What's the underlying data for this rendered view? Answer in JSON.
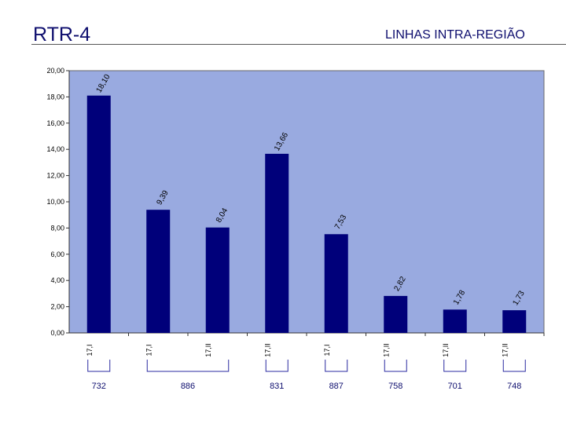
{
  "header": {
    "title": "RTR-4",
    "section": "LINHAS INTRA-REGIÃO"
  },
  "colors": {
    "bar": "#00007a",
    "plot_bg": "#99aae0",
    "ink": "#0e0e6e"
  },
  "chart_data": {
    "type": "bar",
    "title": "",
    "xlabel": "",
    "ylabel": "",
    "ylim": [
      0,
      20
    ],
    "yticks": [
      "0,00",
      "2,00",
      "4,00",
      "6,00",
      "8,00",
      "10,00",
      "12,00",
      "14,00",
      "16,00",
      "18,00",
      "20,00"
    ],
    "categories": [
      "17,I",
      "17,I",
      "17,II",
      "17,II",
      "17,I",
      "17,II",
      "17,II",
      "17,II"
    ],
    "values": [
      18.1,
      9.39,
      8.04,
      13.66,
      7.53,
      2.82,
      1.78,
      1.73
    ],
    "value_labels": [
      "18,10",
      "9,39",
      "8,04",
      "13,66",
      "7,53",
      "2,82",
      "1,78",
      "1,73"
    ],
    "groups": [
      {
        "label": "732",
        "from": 0,
        "to": 0
      },
      {
        "label": "886",
        "from": 1,
        "to": 2
      },
      {
        "label": "831",
        "from": 3,
        "to": 3
      },
      {
        "label": "887",
        "from": 4,
        "to": 4
      },
      {
        "label": "758",
        "from": 5,
        "to": 5
      },
      {
        "label": "701",
        "from": 6,
        "to": 6
      },
      {
        "label": "748",
        "from": 7,
        "to": 7
      }
    ],
    "grid": false
  }
}
